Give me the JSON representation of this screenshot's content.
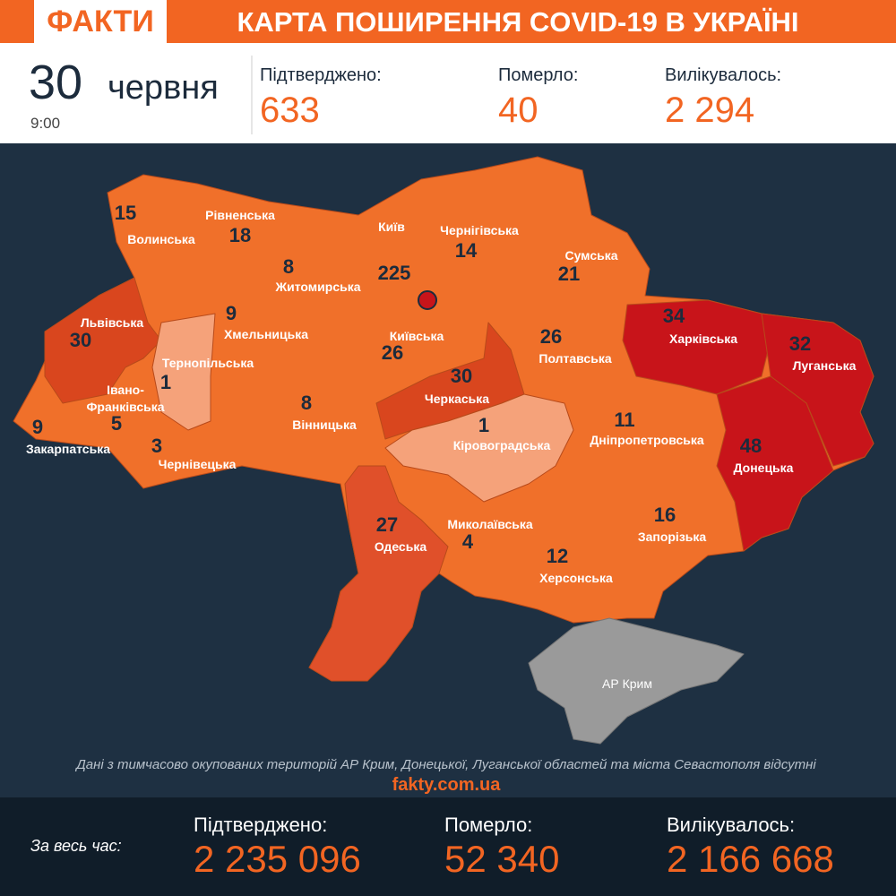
{
  "header": {
    "logo": "ФАКТИ",
    "title": "КАРТА ПОШИРЕННЯ COVID-19 В УКРАЇНІ"
  },
  "daily": {
    "day": "30",
    "month": "червня",
    "time": "9:00",
    "stats": [
      {
        "label": "Підтверджено:",
        "value": "633"
      },
      {
        "label": "Померло:",
        "value": "40"
      },
      {
        "label": "Вилікувалось:",
        "value": "2 294"
      }
    ]
  },
  "map": {
    "regions": [
      {
        "name": "Волинська",
        "value": 15
      },
      {
        "name": "Рівненська",
        "value": 18
      },
      {
        "name": "Житомирська",
        "value": 8
      },
      {
        "name": "Київ",
        "value": 225
      },
      {
        "name": "Чернігівська",
        "value": 14
      },
      {
        "name": "Сумська",
        "value": 21
      },
      {
        "name": "Львівська",
        "value": 30
      },
      {
        "name": "Хмельницька",
        "value": 9
      },
      {
        "name": "Тернопільська",
        "value": 1
      },
      {
        "name": "Київська",
        "value": 26
      },
      {
        "name": "Полтавська",
        "value": 26
      },
      {
        "name": "Харківська",
        "value": 34
      },
      {
        "name": "Луганська",
        "value": 32
      },
      {
        "name": "Івано-Франківська",
        "value": 5
      },
      {
        "name": "Черкаська",
        "value": 30
      },
      {
        "name": "Закарпатська",
        "value": 9
      },
      {
        "name": "Чернівецька",
        "value": 3
      },
      {
        "name": "Вінницька",
        "value": 8
      },
      {
        "name": "Кіровоградська",
        "value": 1
      },
      {
        "name": "Дніпропетровська",
        "value": 11
      },
      {
        "name": "Донецька",
        "value": 48
      },
      {
        "name": "Одеська",
        "value": 27
      },
      {
        "name": "Миколаївська",
        "value": 4
      },
      {
        "name": "Херсонська",
        "value": 12
      },
      {
        "name": "Запорізька",
        "value": 16
      }
    ],
    "crimea": "АР Крим",
    "note": "Дані з тимчасово окупованих територій АР Крим, Донецької, Луганської областей та міста Севастополя відсутні",
    "site": "fakty.com.ua"
  },
  "totals": {
    "label": "За весь час:",
    "stats": [
      {
        "label": "Підтверджено:",
        "value": "2 235 096"
      },
      {
        "label": "Померло:",
        "value": "52 340"
      },
      {
        "label": "Вилікувалось:",
        "value": "2 166 668"
      }
    ]
  }
}
